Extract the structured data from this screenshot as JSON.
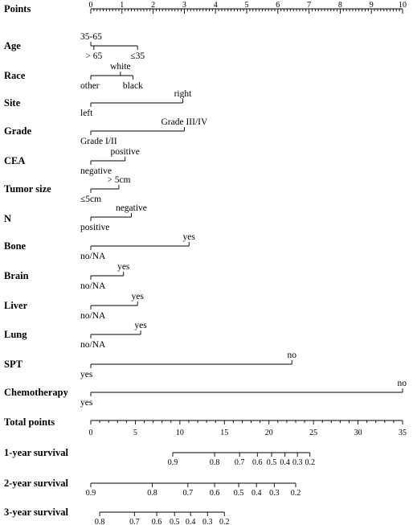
{
  "rows": [
    {
      "label": "Points",
      "type": "axis",
      "ticks": [
        "0",
        "1",
        "2",
        "3",
        "4",
        "5",
        "6",
        "7",
        "8",
        "9",
        "10"
      ],
      "min": 0,
      "max": 10,
      "major": 1,
      "minor": 0.1
    },
    {
      "label": "Age",
      "type": "variable",
      "levels": [
        {
          "text": "35-65",
          "points": 0.0,
          "side": "above"
        },
        {
          "text": "> 65",
          "points": 0.1,
          "side": "below"
        },
        {
          "text": "≤35",
          "points": 1.5,
          "side": "below"
        }
      ]
    },
    {
      "label": "Race",
      "type": "variable",
      "levels": [
        {
          "text": "other",
          "points": 0.0,
          "side": "below"
        },
        {
          "text": "white",
          "points": 0.95,
          "side": "above"
        },
        {
          "text": "black",
          "points": 1.35,
          "side": "below"
        }
      ]
    },
    {
      "label": "Site",
      "type": "variable",
      "levels": [
        {
          "text": "left",
          "points": 0.0,
          "side": "below"
        },
        {
          "text": "right",
          "points": 2.95,
          "side": "above"
        }
      ]
    },
    {
      "label": "Grade",
      "type": "variable",
      "levels": [
        {
          "text": "Grade I/II",
          "points": 0.0,
          "side": "below"
        },
        {
          "text": "Grade III/IV",
          "points": 3.0,
          "side": "above"
        }
      ]
    },
    {
      "label": "CEA",
      "type": "variable",
      "levels": [
        {
          "text": "negative",
          "points": 0.0,
          "side": "below"
        },
        {
          "text": "positive",
          "points": 1.1,
          "side": "above"
        }
      ]
    },
    {
      "label": "Tumor size",
      "type": "variable",
      "levels": [
        {
          "text": "≤5cm",
          "points": 0.0,
          "side": "below"
        },
        {
          "text": "> 5cm",
          "points": 0.9,
          "side": "above"
        }
      ]
    },
    {
      "label": "N",
      "type": "variable",
      "levels": [
        {
          "text": "positive",
          "points": 0.0,
          "side": "below"
        },
        {
          "text": "negative",
          "points": 1.3,
          "side": "above"
        }
      ]
    },
    {
      "label": "Bone",
      "type": "variable",
      "levels": [
        {
          "text": "no/NA",
          "points": 0.0,
          "side": "below"
        },
        {
          "text": "yes",
          "points": 3.15,
          "side": "above"
        }
      ]
    },
    {
      "label": "Brain",
      "type": "variable",
      "levels": [
        {
          "text": "no/NA",
          "points": 0.0,
          "side": "below"
        },
        {
          "text": "yes",
          "points": 1.05,
          "side": "above"
        }
      ]
    },
    {
      "label": "Liver",
      "type": "variable",
      "levels": [
        {
          "text": "no/NA",
          "points": 0.0,
          "side": "below"
        },
        {
          "text": "yes",
          "points": 1.5,
          "side": "above"
        }
      ]
    },
    {
      "label": "Lung",
      "type": "variable",
      "levels": [
        {
          "text": "no/NA",
          "points": 0.0,
          "side": "below"
        },
        {
          "text": "yes",
          "points": 1.6,
          "side": "above"
        }
      ]
    },
    {
      "label": "SPT",
      "type": "variable",
      "levels": [
        {
          "text": "yes",
          "points": 0.0,
          "side": "below"
        },
        {
          "text": "no",
          "points": 6.45,
          "side": "above"
        }
      ]
    },
    {
      "label": "Chemotherapy",
      "type": "variable",
      "levels": [
        {
          "text": "yes",
          "points": 0.0,
          "side": "below"
        },
        {
          "text": "no",
          "points": 10.0,
          "side": "above"
        }
      ]
    },
    {
      "label": "Total points",
      "type": "axis",
      "ticks": [
        "0",
        "5",
        "10",
        "15",
        "20",
        "25",
        "30",
        "35"
      ],
      "min": 0,
      "max": 35,
      "major": 5,
      "minor": 1
    },
    {
      "label": "1-year survival",
      "type": "prob",
      "ticks": [
        {
          "text": "0.9",
          "total": 9.2
        },
        {
          "text": "0.8",
          "total": 13.9
        },
        {
          "text": "0.7",
          "total": 16.7
        },
        {
          "text": "0.6",
          "total": 18.7
        },
        {
          "text": "0.5",
          "total": 20.3
        },
        {
          "text": "0.4",
          "total": 21.8
        },
        {
          "text": "0.3",
          "total": 23.2
        },
        {
          "text": "0.2",
          "total": 24.6
        }
      ]
    },
    {
      "label": "2-year survival",
      "type": "prob",
      "ticks": [
        {
          "text": "0.9",
          "total": 0.0
        },
        {
          "text": "0.8",
          "total": 6.9
        },
        {
          "text": "0.7",
          "total": 10.9
        },
        {
          "text": "0.6",
          "total": 13.9
        },
        {
          "text": "0.5",
          "total": 16.6
        },
        {
          "text": "0.4",
          "total": 18.6
        },
        {
          "text": "0.3",
          "total": 20.6
        },
        {
          "text": "0.2",
          "total": 23.0
        }
      ]
    },
    {
      "label": "3-year survival",
      "type": "prob",
      "ticks": [
        {
          "text": "0.8",
          "total": 1.0
        },
        {
          "text": "0.7",
          "total": 4.9
        },
        {
          "text": "0.6",
          "total": 7.4
        },
        {
          "text": "0.5",
          "total": 9.4
        },
        {
          "text": "0.4",
          "total": 11.2
        },
        {
          "text": "0.3",
          "total": 13.1
        },
        {
          "text": "0.2",
          "total": 15.0
        }
      ]
    }
  ]
}
